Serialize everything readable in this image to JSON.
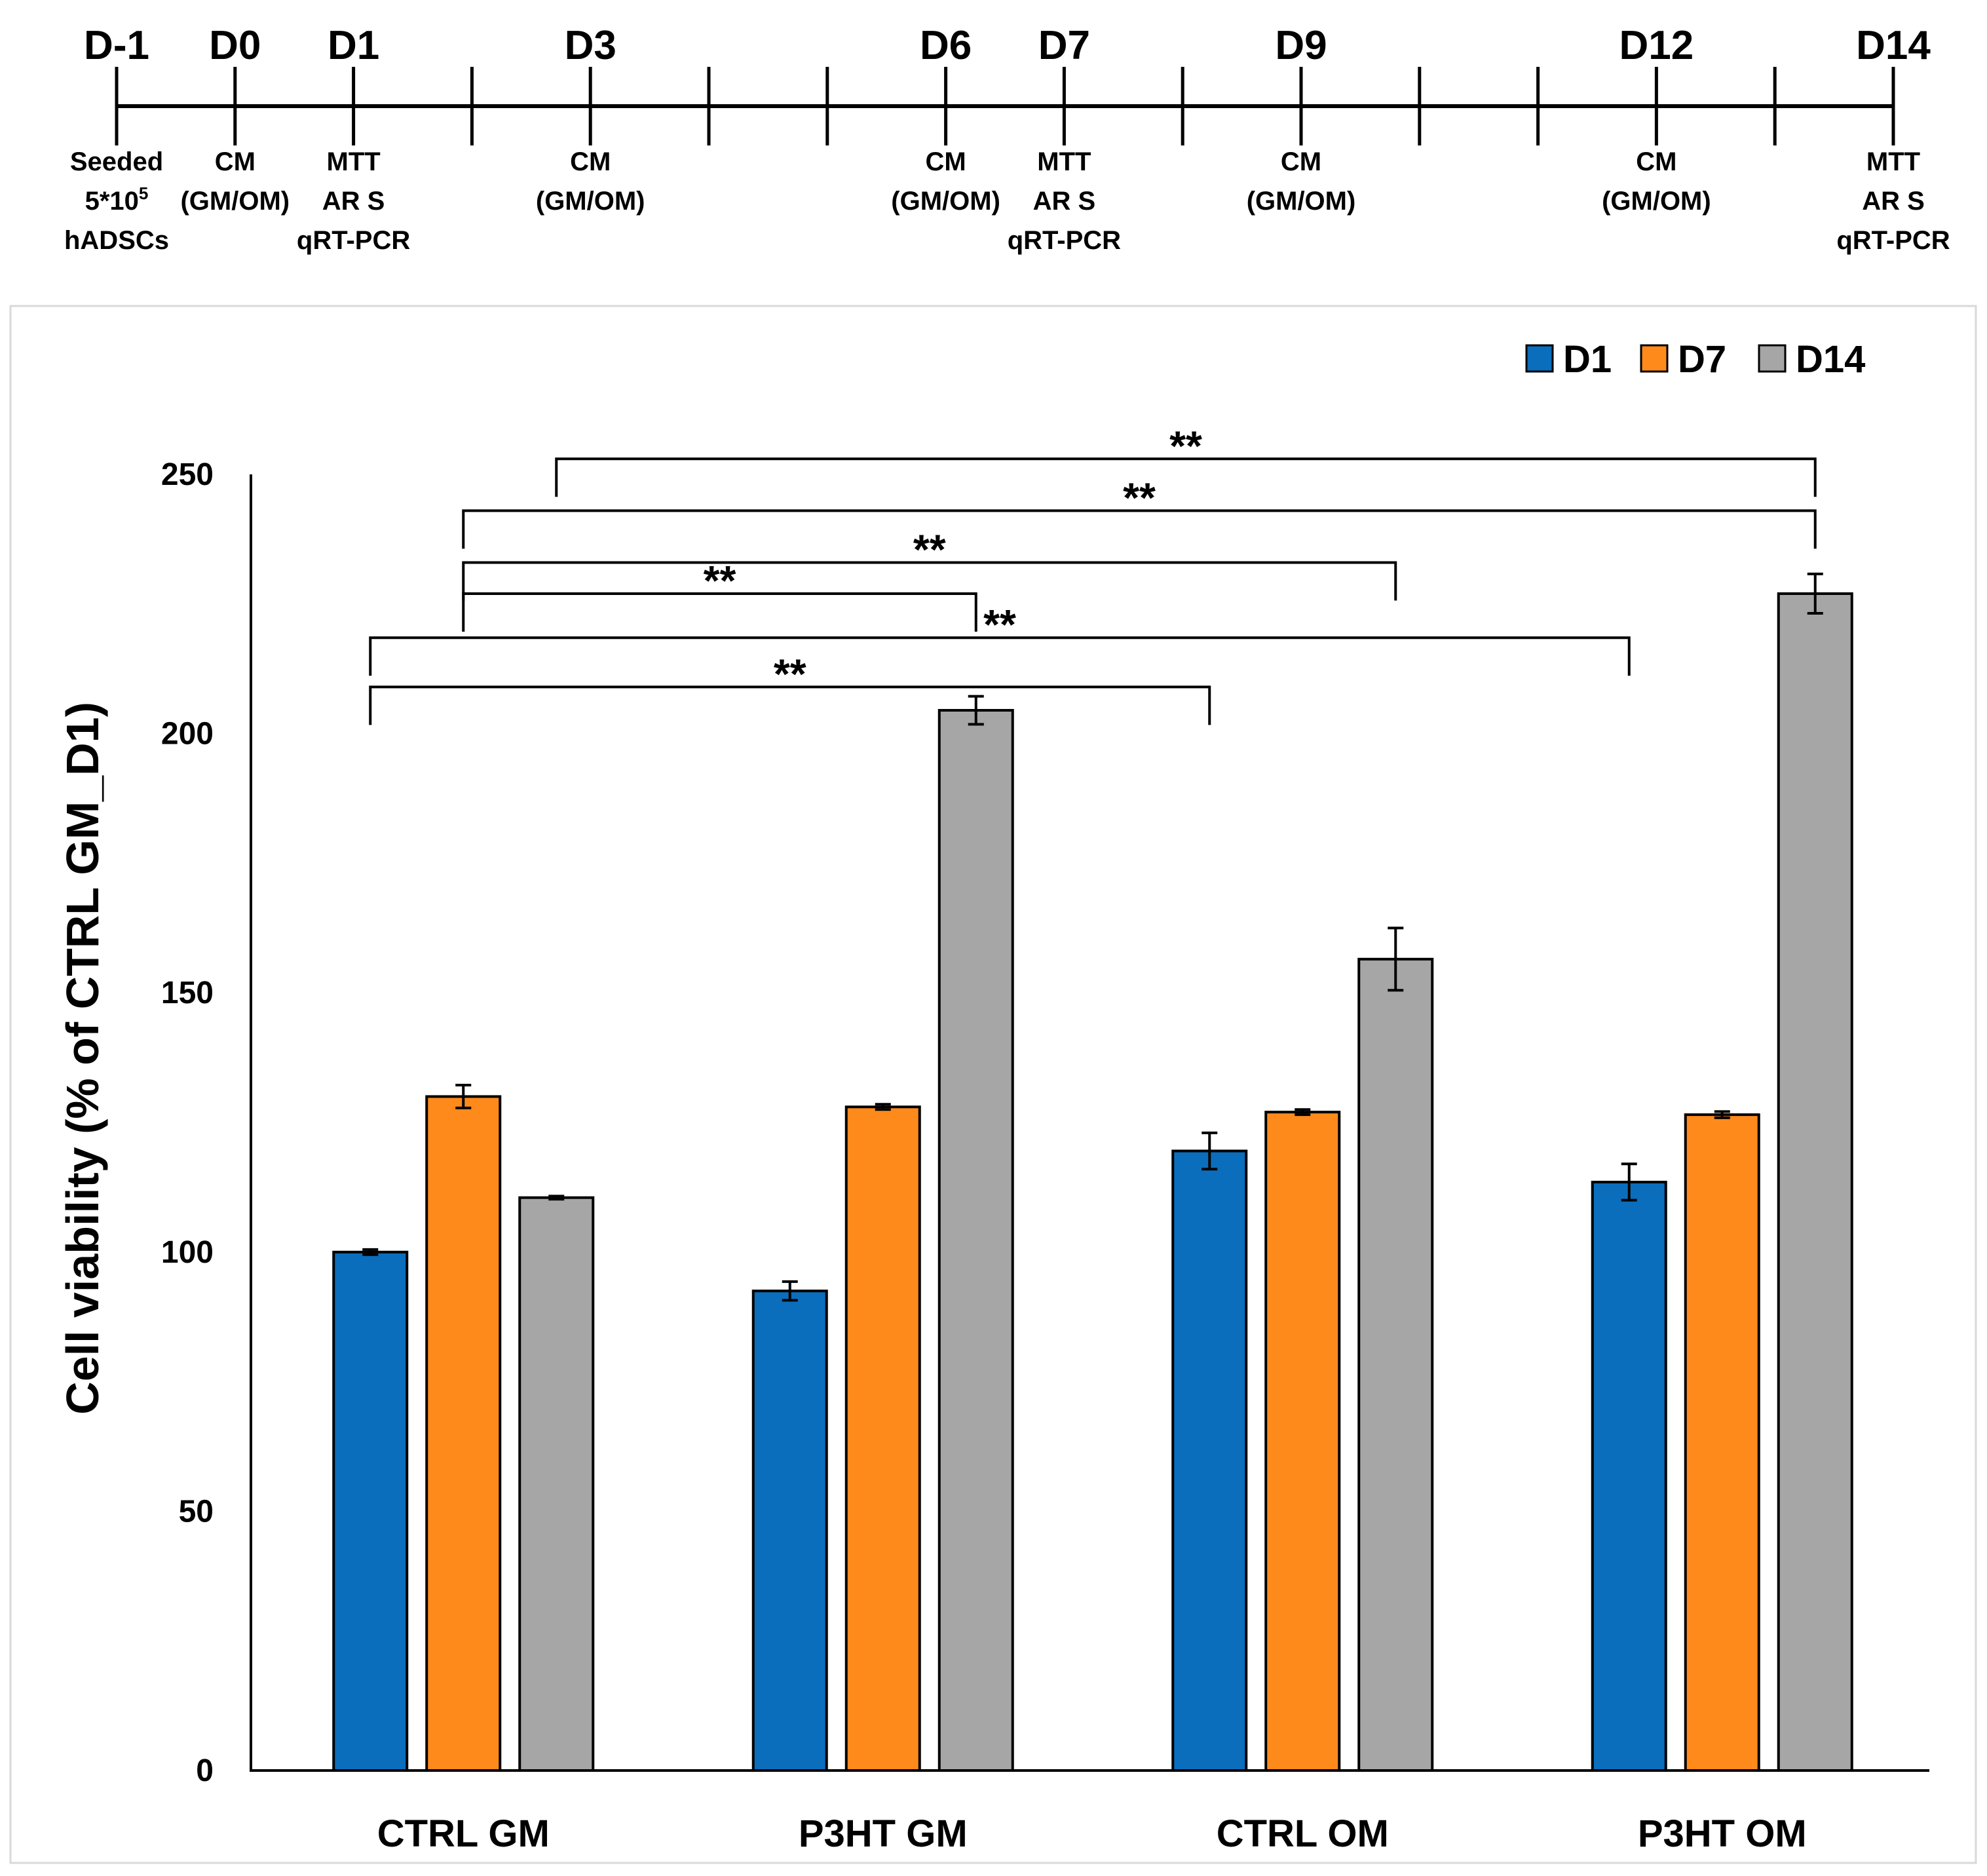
{
  "timeline": {
    "days": [
      {
        "label": "D-1",
        "notes": [
          "Seeded",
          "5*10",
          "hADSCs"
        ],
        "notes_sup": "5"
      },
      {
        "label": "D0",
        "notes": [
          "CM",
          "(GM/OM)"
        ]
      },
      {
        "label": "D1",
        "notes": [
          "MTT",
          "AR S",
          "qRT-PCR"
        ]
      },
      {
        "label": "",
        "notes": []
      },
      {
        "label": "D3",
        "notes": [
          "CM",
          "(GM/OM)"
        ]
      },
      {
        "label": "",
        "notes": []
      },
      {
        "label": "",
        "notes": []
      },
      {
        "label": "D6",
        "notes": [
          "CM",
          "(GM/OM)"
        ]
      },
      {
        "label": "D7",
        "notes": [
          "MTT",
          "AR S",
          "qRT-PCR"
        ]
      },
      {
        "label": "",
        "notes": []
      },
      {
        "label": "D9",
        "notes": [
          "CM",
          "(GM/OM)"
        ]
      },
      {
        "label": "",
        "notes": []
      },
      {
        "label": "",
        "notes": []
      },
      {
        "label": "D12",
        "notes": [
          "CM",
          "(GM/OM)"
        ]
      },
      {
        "label": "",
        "notes": []
      },
      {
        "label": "D14",
        "notes": [
          "MTT",
          "AR S",
          "qRT-PCR"
        ]
      }
    ]
  },
  "chart_data": {
    "type": "bar",
    "title": "",
    "xlabel": "",
    "ylabel": "Cell viability (% of CTRL GM_D1)",
    "ylim": [
      0,
      250
    ],
    "yticks": [
      0,
      50,
      100,
      150,
      200,
      250
    ],
    "grid": false,
    "legend_position": "top-right",
    "categories": [
      "CTRL GM",
      "P3HT GM",
      "CTRL OM",
      "P3HT OM"
    ],
    "series": [
      {
        "name": "D1",
        "color": "#0a6ebd",
        "values": [
          100,
          92.5,
          119.5,
          113.5
        ],
        "errors": [
          0.5,
          1.8,
          3.5,
          3.5
        ]
      },
      {
        "name": "D7",
        "color": "#ff8a1c",
        "values": [
          130,
          128,
          127,
          126.5
        ],
        "errors": [
          2.2,
          0.5,
          0.5,
          0.6
        ]
      },
      {
        "name": "D14",
        "color": "#a6a6a6",
        "values": [
          110.5,
          204.5,
          156.5,
          227
        ],
        "errors": [
          0.3,
          2.7,
          6.0,
          3.8
        ]
      }
    ],
    "significance": [
      {
        "label": "**",
        "from": "CTRL GM D14",
        "to": "P3HT OM D14"
      },
      {
        "label": "**",
        "from": "CTRL GM D7",
        "to": "P3HT OM D14"
      },
      {
        "label": "**",
        "from": "CTRL GM D7",
        "to": "CTRL OM D14"
      },
      {
        "label": "**",
        "from": "CTRL GM D7",
        "to": "P3HT GM D14"
      },
      {
        "label": "**",
        "from": "CTRL GM D1",
        "to": "P3HT OM D1"
      },
      {
        "label": "**",
        "from": "CTRL GM D1",
        "to": "CTRL OM D1"
      }
    ]
  }
}
